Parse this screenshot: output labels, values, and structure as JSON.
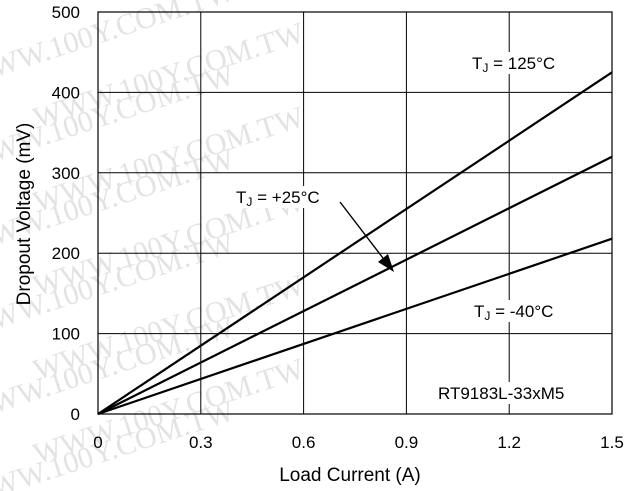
{
  "chart_data": {
    "type": "line",
    "title": "",
    "xlabel": "Load Current (A)",
    "ylabel": "Dropout Voltage (mV)",
    "xlim": [
      0,
      1.5
    ],
    "ylim": [
      0,
      500
    ],
    "xticks": [
      "0",
      "0.3",
      "0.6",
      "0.9",
      "1.2",
      "1.5"
    ],
    "yticks": [
      "0",
      "100",
      "200",
      "300",
      "400",
      "500"
    ],
    "grid": true,
    "series": [
      {
        "name": "TJ = 125°C",
        "x": [
          0,
          1.5
        ],
        "y": [
          0,
          425
        ]
      },
      {
        "name": "TJ = +25°C",
        "x": [
          0,
          1.5
        ],
        "y": [
          0,
          320
        ]
      },
      {
        "name": "TJ = -40°C",
        "x": [
          0,
          1.5
        ],
        "y": [
          0,
          218
        ]
      }
    ],
    "annotations": {
      "t125": {
        "sub": "J",
        "rest": " = 125°C"
      },
      "t25": {
        "sub": "J",
        "rest": " = +25°C"
      },
      "tm40": {
        "sub": "J",
        "rest": " = -40°C"
      },
      "part": "RT9183L-33xM5"
    },
    "watermark": "WWW.100Y.COM.TW",
    "colors": {
      "line": "#000000",
      "grid": "#000000",
      "watermark": "#e3e3e3"
    }
  }
}
